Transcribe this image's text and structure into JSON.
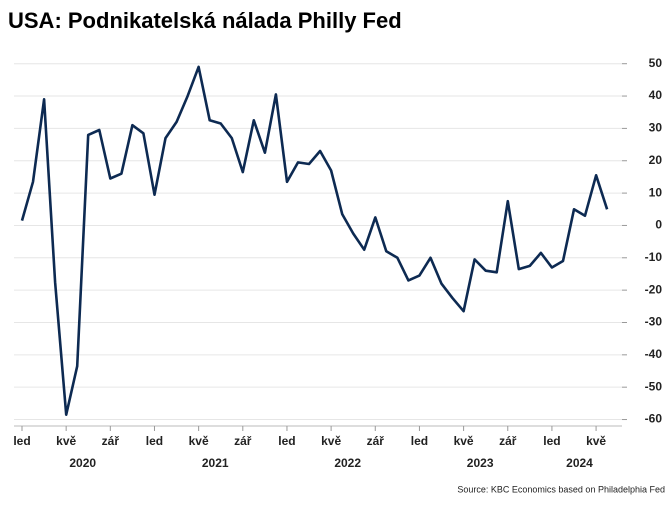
{
  "chart_data": {
    "type": "line",
    "title": "USA: Podnikatelská nálada Philly Fed",
    "categories": [
      "led",
      null,
      null,
      null,
      "kvě",
      null,
      null,
      null,
      "zář",
      null,
      null,
      null,
      "led",
      null,
      null,
      null,
      "kvě",
      null,
      null,
      null,
      "zář",
      null,
      null,
      null,
      "led",
      null,
      null,
      null,
      "kvě",
      null,
      null,
      null,
      "zář",
      null,
      null,
      null,
      "led",
      null,
      null,
      null,
      "kvě",
      null,
      null,
      null,
      "zář",
      null,
      null,
      null,
      "led",
      null,
      null,
      null,
      "kvě",
      null
    ],
    "year_labels": [
      "2020",
      "2021",
      "2022",
      "2023",
      "2024"
    ],
    "series": [
      {
        "name": "Philly Fed",
        "color": "#0d2a52",
        "values": [
          1.5,
          13.5,
          39,
          -17.5,
          -58.5,
          -43.5,
          28,
          29.5,
          14.5,
          16,
          31,
          28.5,
          9.5,
          27,
          32,
          40,
          49,
          32.5,
          31.5,
          27,
          16.5,
          32.5,
          22.5,
          40.5,
          13.5,
          19.5,
          19,
          23,
          17,
          3.5,
          -2.5,
          -7.5,
          2.5,
          -8,
          -10,
          -17,
          -15.5,
          -10,
          -18,
          -22.5,
          -26.5,
          -10.5,
          -14,
          -14.5,
          7.5,
          -13.5,
          -12.5,
          -8.5,
          -13,
          -11,
          5,
          3,
          15.5,
          5
        ]
      }
    ],
    "ylim": [
      -62,
      53
    ],
    "yticks": [
      -60,
      -50,
      -40,
      -30,
      -20,
      -10,
      0,
      10,
      20,
      30,
      40,
      50
    ],
    "grid": true,
    "source": "Source: KBC Economics based on Philadelphia Fed"
  }
}
